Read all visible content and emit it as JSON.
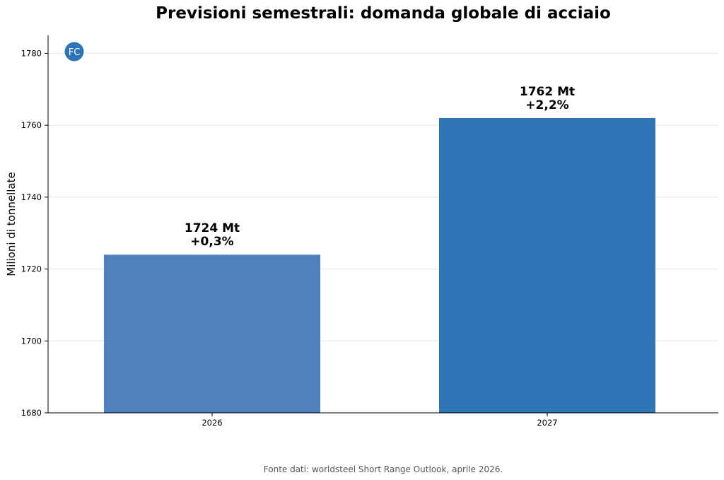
{
  "chart_data": {
    "type": "bar",
    "title": "Previsioni semestrali: domanda globale di acciaio",
    "xlabel": "",
    "ylabel": "Milioni di tonnellate",
    "categories": [
      "2026",
      "2027"
    ],
    "values": [
      1724,
      1762
    ],
    "bar_labels": [
      {
        "value": "1724 Mt",
        "change": "+0,3%"
      },
      {
        "value": "1762 Mt",
        "change": "+2,2%"
      }
    ],
    "bar_colors": [
      "#4f81bd",
      "#2e75b6"
    ],
    "ylim": [
      1680,
      1785
    ],
    "yticks": [
      1680,
      1700,
      1720,
      1740,
      1760,
      1780
    ],
    "grid": "horizontal",
    "badge": "FC",
    "badge_color": "#2e75b6",
    "source": "Fonte dati: worldsteel Short Range Outlook, aprile 2026."
  }
}
